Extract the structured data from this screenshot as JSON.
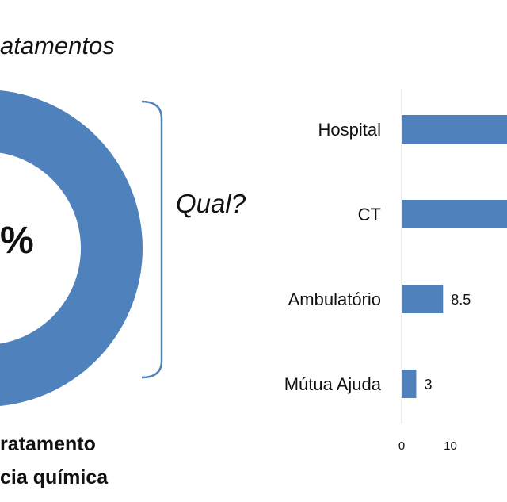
{
  "slide": {
    "heading": "atamentos",
    "donut_center_text": "%",
    "question": "Qual?",
    "caption_line1": "ratamento",
    "caption_line2": "cia química"
  },
  "colors": {
    "bar": "#4f81bd",
    "donut": "#4f81bd",
    "bracket": "#4f81bd",
    "axis": "#d9d9d9"
  },
  "chart_data": {
    "type": "bar",
    "orientation": "horizontal",
    "categories": [
      "Hospital",
      "CT",
      "Ambulatório",
      "Mútua Ajuda"
    ],
    "values": [
      null,
      null,
      8.5,
      3
    ],
    "value_labels": [
      "",
      "",
      "8.5",
      "3"
    ],
    "x_ticks": [
      "0",
      "10"
    ],
    "xlim": [
      0,
      20
    ],
    "grid": false,
    "legend": "none"
  }
}
